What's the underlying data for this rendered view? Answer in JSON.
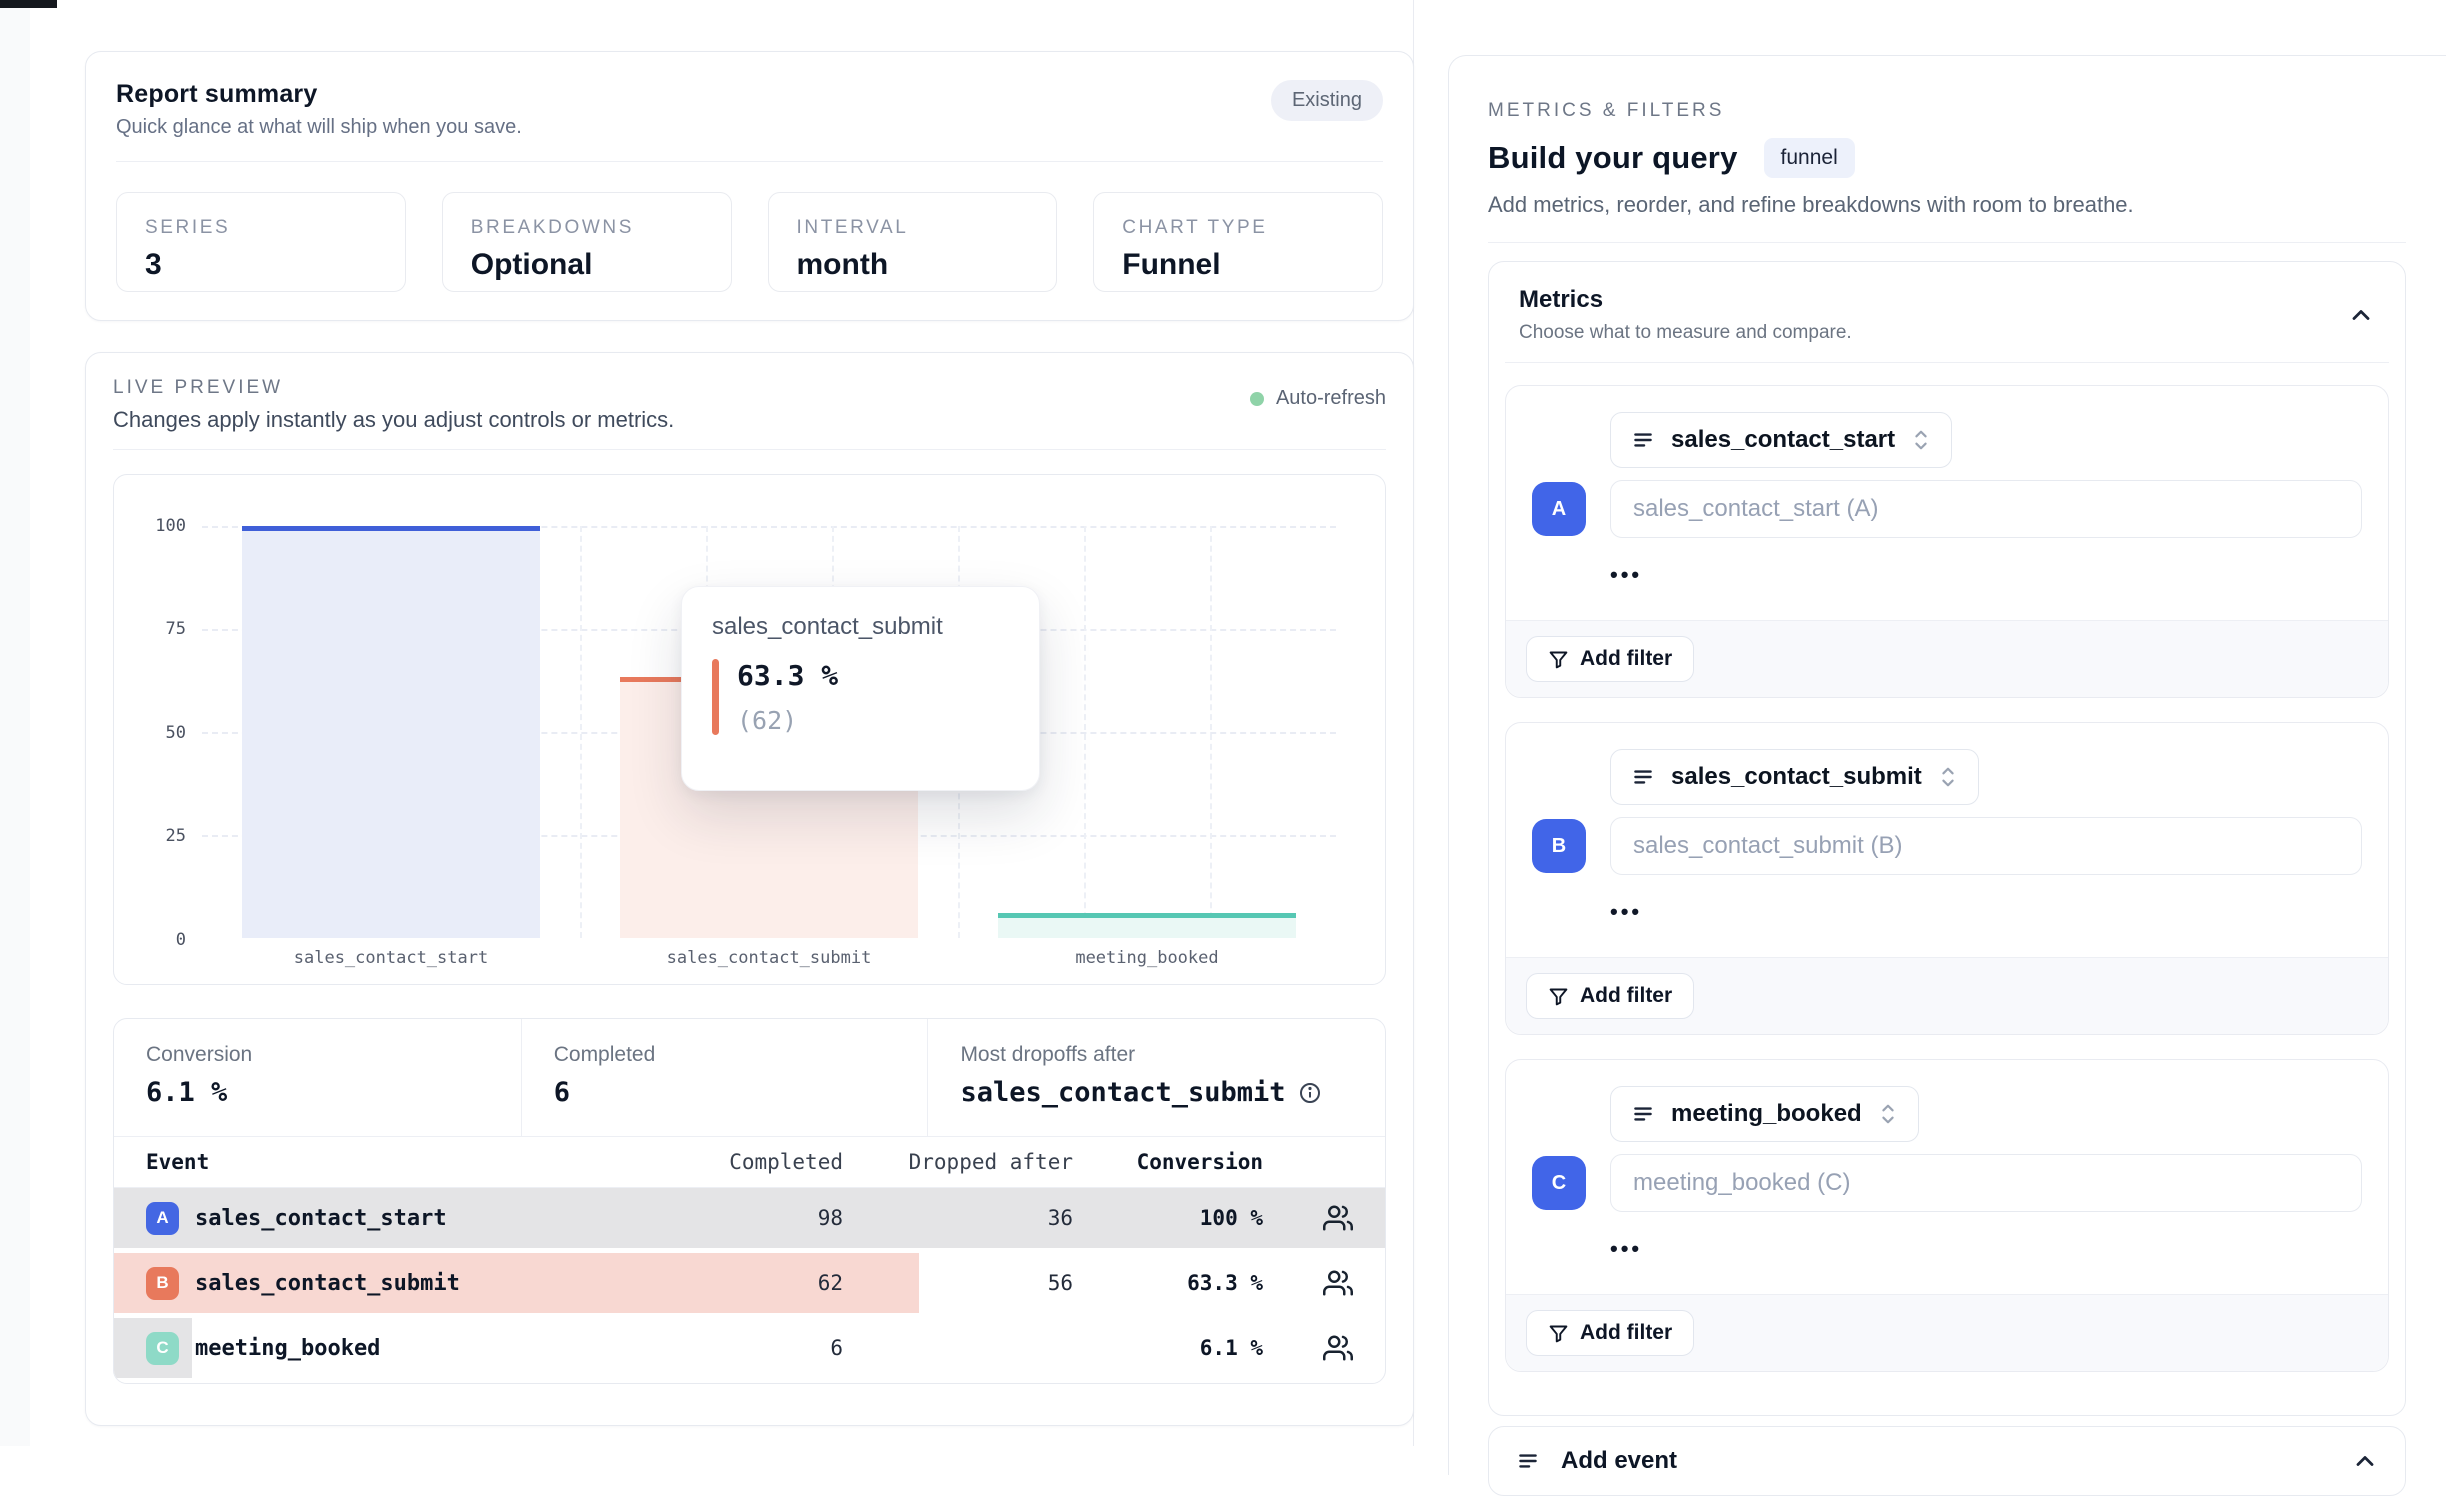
{
  "report_summary": {
    "title": "Report summary",
    "subtitle": "Quick glance at what will ship when you save.",
    "status_badge": "Existing",
    "tiles": [
      {
        "label": "SERIES",
        "value": "3"
      },
      {
        "label": "BREAKDOWNS",
        "value": "Optional"
      },
      {
        "label": "INTERVAL",
        "value": "month"
      },
      {
        "label": "CHART TYPE",
        "value": "Funnel"
      }
    ]
  },
  "live_preview": {
    "kicker": "LIVE PREVIEW",
    "description": "Changes apply instantly as you adjust controls or metrics.",
    "auto_refresh_label": "Auto-refresh",
    "auto_refresh_color": "#8fd3a8"
  },
  "chart_data": {
    "type": "bar",
    "subtype": "funnel-steps",
    "title": "",
    "categories": [
      "sales_contact_start",
      "sales_contact_submit",
      "meeting_booked"
    ],
    "values": [
      100,
      63.3,
      6.1
    ],
    "counts": [
      98,
      62,
      6
    ],
    "yticks": [
      "0",
      "25",
      "50",
      "75",
      "100"
    ],
    "ylim": [
      0,
      100
    ],
    "grid": "dashed",
    "series_colors": [
      "#3f5fd8",
      "#e8795c",
      "#56c7b3"
    ],
    "series_fills": [
      "#e9edf9",
      "#fceeea",
      "#eaf8f5"
    ]
  },
  "tooltip": {
    "title": "sales_contact_submit",
    "value": "63.3 %",
    "count": "(62)",
    "accent": "#e8795c"
  },
  "stats": [
    {
      "label": "Conversion",
      "value": "6.1 %"
    },
    {
      "label": "Completed",
      "value": "6"
    },
    {
      "label": "Most dropoffs after",
      "value": "sales_contact_submit"
    }
  ],
  "table": {
    "headers": [
      "Event",
      "Completed",
      "Dropped after",
      "Conversion"
    ],
    "rows": [
      {
        "letter": "A",
        "event": "sales_contact_start",
        "completed": "98",
        "dropped": "36",
        "conversion": "100 %",
        "badge_color": "#4467e3",
        "fill_color": "#e4e4e6",
        "fill_pct": 100
      },
      {
        "letter": "B",
        "event": "sales_contact_submit",
        "completed": "62",
        "dropped": "56",
        "conversion": "63.3 %",
        "badge_color": "#e8795c",
        "fill_color": "#f8d8d2",
        "fill_pct": 63.3
      },
      {
        "letter": "C",
        "event": "meeting_booked",
        "completed": "6",
        "dropped": "",
        "conversion": "6.1 %",
        "badge_color": "#8edac7",
        "fill_color": "#e4e4e6",
        "fill_pct": 6.1
      }
    ]
  },
  "query_panel": {
    "kicker": "METRICS & FILTERS",
    "title": "Build your query",
    "type_badge": "funnel",
    "description": "Add metrics, reorder, and refine breakdowns with room to breathe.",
    "metrics_section": {
      "title": "Metrics",
      "subtitle": "Choose what to measure and compare."
    },
    "metric_cards": [
      {
        "letter": "A",
        "event": "sales_contact_start",
        "placeholder": "sales_contact_start (A)"
      },
      {
        "letter": "B",
        "event": "sales_contact_submit",
        "placeholder": "sales_contact_submit (B)"
      },
      {
        "letter": "C",
        "event": "meeting_booked",
        "placeholder": "meeting_booked (C)"
      }
    ],
    "badge_color": "#4165e8",
    "more_dots": "•••",
    "add_filter_label": "Add filter",
    "add_event_label": "Add event"
  }
}
